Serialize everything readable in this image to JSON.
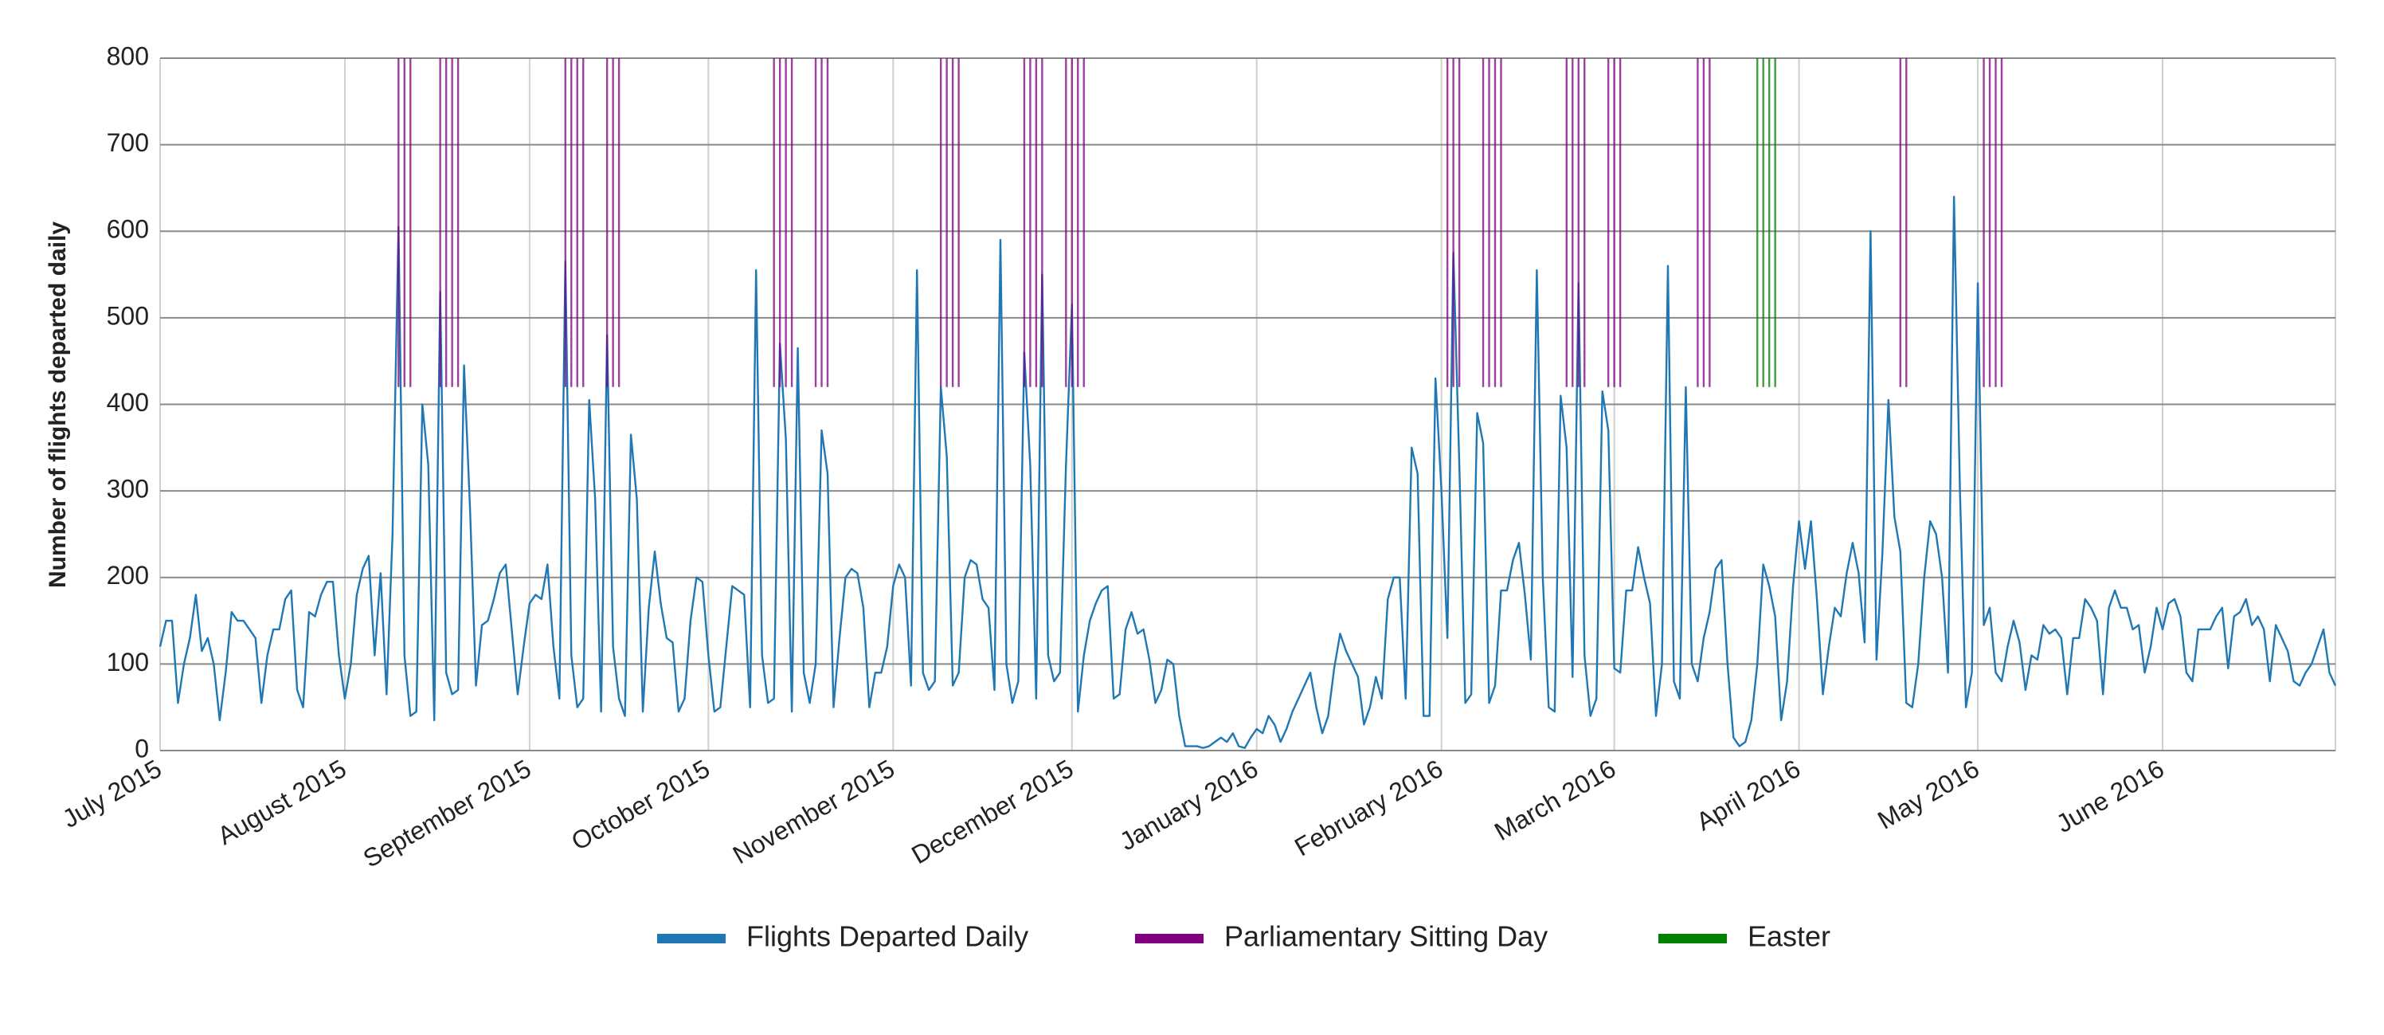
{
  "chart_data": {
    "type": "line",
    "y_label": "Number of flights departed daily",
    "xlim": [
      0,
      365
    ],
    "xticks": [
      {
        "value": 0,
        "label": "July 2015"
      },
      {
        "value": 31,
        "label": "August 2015"
      },
      {
        "value": 62,
        "label": "September 2015"
      },
      {
        "value": 92,
        "label": "October 2015"
      },
      {
        "value": 123,
        "label": "November 2015"
      },
      {
        "value": 153,
        "label": "December 2015"
      },
      {
        "value": 184,
        "label": "January 2016"
      },
      {
        "value": 215,
        "label": "February 2016"
      },
      {
        "value": 244,
        "label": "March 2016"
      },
      {
        "value": 275,
        "label": "April 2016"
      },
      {
        "value": 305,
        "label": "May 2016"
      },
      {
        "value": 336,
        "label": "June 2016"
      }
    ],
    "ylim": [
      0,
      800
    ],
    "yticks": [
      0,
      100,
      200,
      300,
      400,
      500,
      600,
      700,
      800
    ],
    "grid": true,
    "legend": "bottom",
    "series": [
      {
        "name": "Flights Departed Daily",
        "color": "#1f77b4",
        "type": "line",
        "values": [
          120,
          150,
          150,
          55,
          100,
          130,
          180,
          115,
          130,
          100,
          35,
          90,
          160,
          150,
          150,
          140,
          130,
          55,
          110,
          140,
          140,
          175,
          185,
          70,
          50,
          160,
          155,
          180,
          195,
          195,
          110,
          60,
          100,
          180,
          210,
          225,
          110,
          205,
          65,
          250,
          605,
          110,
          40,
          45,
          400,
          330,
          35,
          530,
          90,
          65,
          70,
          445,
          280,
          75,
          145,
          150,
          175,
          205,
          215,
          140,
          65,
          120,
          170,
          180,
          175,
          215,
          120,
          60,
          565,
          110,
          50,
          60,
          405,
          290,
          45,
          480,
          120,
          60,
          40,
          365,
          290,
          45,
          165,
          230,
          170,
          130,
          125,
          45,
          60,
          150,
          200,
          195,
          110,
          45,
          50,
          120,
          190,
          185,
          180,
          50,
          555,
          110,
          55,
          60,
          470,
          360,
          45,
          465,
          90,
          55,
          100,
          370,
          320,
          50,
          130,
          200,
          210,
          205,
          165,
          50,
          90,
          90,
          120,
          190,
          215,
          200,
          75,
          555,
          90,
          70,
          80,
          420,
          340,
          75,
          90,
          200,
          220,
          215,
          175,
          165,
          70,
          590,
          100,
          55,
          80,
          460,
          330,
          60,
          550,
          110,
          80,
          90,
          330,
          515,
          45,
          110,
          150,
          170,
          185,
          190,
          60,
          65,
          140,
          160,
          135,
          140,
          105,
          55,
          70,
          105,
          100,
          40,
          5,
          5,
          5,
          3,
          5,
          10,
          15,
          10,
          20,
          5,
          3,
          15,
          25,
          20,
          40,
          30,
          10,
          25,
          45,
          60,
          75,
          90,
          50,
          20,
          40,
          95,
          135,
          115,
          100,
          85,
          30,
          50,
          85,
          60,
          175,
          200,
          200,
          60,
          350,
          320,
          40,
          40,
          430,
          300,
          130,
          575,
          330,
          55,
          65,
          390,
          355,
          55,
          75,
          185,
          185,
          220,
          240,
          180,
          105,
          555,
          200,
          50,
          45,
          410,
          350,
          85,
          540,
          110,
          40,
          60,
          415,
          370,
          95,
          90,
          185,
          185,
          235,
          200,
          170,
          40,
          100,
          560,
          80,
          60,
          420,
          100,
          80,
          130,
          160,
          210,
          220,
          100,
          15,
          5,
          10,
          35,
          100,
          215,
          190,
          155,
          35,
          80,
          190,
          265,
          210,
          265,
          175,
          65,
          120,
          165,
          155,
          205,
          240,
          205,
          125,
          600,
          105,
          230,
          405,
          270,
          230,
          55,
          50,
          100,
          200,
          265,
          250,
          200,
          90,
          640,
          300,
          50,
          90,
          540,
          145,
          165,
          90,
          80,
          120,
          150,
          125,
          70,
          110,
          105,
          145,
          135,
          140,
          130,
          65,
          130,
          130,
          175,
          165,
          150,
          65,
          165,
          185,
          165,
          165,
          140,
          145,
          90,
          120,
          165,
          140,
          170,
          175,
          155,
          90,
          80,
          140,
          140,
          140,
          155,
          165,
          95,
          155,
          160,
          175,
          145,
          155,
          140,
          80,
          145,
          130,
          115,
          80,
          75,
          90,
          100,
          120,
          140,
          90,
          75
        ]
      },
      {
        "name": "Parliamentary Sitting Day",
        "color": "#800080",
        "type": "vline",
        "span": [
          420,
          800
        ],
        "x": [
          40,
          41,
          42,
          47,
          48,
          49,
          50,
          68,
          69,
          70,
          71,
          75,
          76,
          77,
          103,
          104,
          105,
          106,
          110,
          111,
          112,
          131,
          132,
          133,
          134,
          145,
          146,
          147,
          148,
          152,
          153,
          154,
          155,
          216,
          217,
          218,
          222,
          223,
          224,
          225,
          236,
          237,
          238,
          239,
          243,
          244,
          245,
          258,
          259,
          260,
          292,
          293,
          306,
          307,
          308,
          309
        ]
      },
      {
        "name": "Easter",
        "color": "#008000",
        "type": "vline",
        "span": [
          420,
          800
        ],
        "x": [
          268,
          269,
          270,
          271
        ]
      }
    ]
  }
}
